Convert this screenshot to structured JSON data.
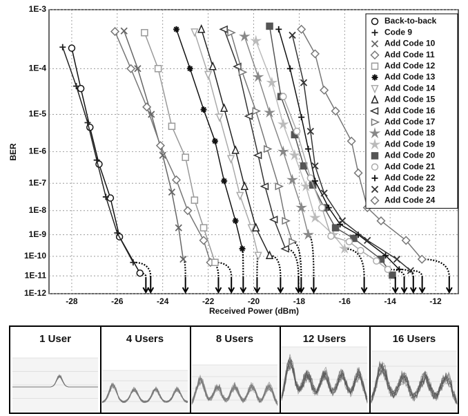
{
  "chart_data": {
    "type": "line",
    "x_label": "Received Power (dBm)",
    "y_label": "BER",
    "xlim": [
      -29,
      -11
    ],
    "xticks": [
      -28,
      -26,
      -24,
      -22,
      -20,
      -18,
      -16,
      -14,
      -12
    ],
    "ylim": [
      0.001,
      1e-12
    ],
    "yscale": "log-log",
    "yticks": [
      {
        "value": 0.001,
        "label": "1E-3"
      },
      {
        "value": 0.0001,
        "label": "1E-4"
      },
      {
        "value": 1e-05,
        "label": "1E-5"
      },
      {
        "value": 1e-06,
        "label": "1E-6"
      },
      {
        "value": 1e-07,
        "label": "1E-7"
      },
      {
        "value": 1e-08,
        "label": "1E-8"
      },
      {
        "value": 1e-09,
        "label": "1E-9"
      },
      {
        "value": 1e-10,
        "label": "1E-10"
      },
      {
        "value": 1e-11,
        "label": "1E-11"
      },
      {
        "value": 1e-12,
        "label": "1E-12"
      }
    ],
    "grid": true,
    "legend": "top-right",
    "series": [
      {
        "name": "Back-to-back",
        "marker": "circle",
        "color": "#111111",
        "x": [
          -28,
          -27.6,
          -27.2,
          -26.8,
          -26.3,
          -25.9,
          -25.0
        ],
        "values": [
          0.00024,
          3.9e-05,
          4.7e-06,
          4.2e-07,
          3e-08,
          8.1e-10,
          1.4e-11
        ],
        "arrow": -24.74
      },
      {
        "name": "Code 9",
        "marker": "plus",
        "color": "#222222",
        "x": [
          -28.4,
          -27.8,
          -27.3,
          -26.9,
          -26.5,
          -26.0,
          -25.3
        ],
        "values": [
          0.00025,
          4.4e-05,
          6.2e-06,
          5.6e-07,
          3.3e-08,
          1.2e-09,
          5e-11
        ],
        "arrow": -24.53
      },
      {
        "name": "Add Code 10",
        "marker": "x",
        "color": "#666666",
        "x": [
          -25.7,
          -25.1,
          -24.5,
          -24.0,
          -23.6,
          -23.3,
          -23.1
        ],
        "values": [
          0.00047,
          0.0001,
          1e-05,
          7.8e-07,
          4.9e-08,
          2e-09,
          7.2e-11
        ],
        "arrow": -23.0
      },
      {
        "name": "Add Code 11",
        "marker": "diamond",
        "color": "#777777",
        "x": [
          -26.1,
          -25.4,
          -24.7,
          -24.1,
          -23.4,
          -22.9,
          -22.2,
          -21.9
        ],
        "values": [
          0.00046,
          0.0001,
          1.5e-05,
          1.5e-06,
          1.3e-07,
          1e-08,
          5.6e-10,
          5e-11
        ],
        "arrow": -21.55
      },
      {
        "name": "Add Code 12",
        "marker": "square",
        "color": "#999999",
        "x": [
          -24.8,
          -24.2,
          -23.6,
          -23.0,
          -22.6,
          -22.2,
          -21.7
        ],
        "values": [
          0.00044,
          0.0001,
          5e-06,
          6.8e-07,
          2.5e-08,
          2e-09,
          5e-11
        ],
        "arrow": -20.98
      },
      {
        "name": "Add Code 13",
        "marker": "asterisk",
        "color": "#111111",
        "x": [
          -23.4,
          -22.8,
          -22.2,
          -21.7,
          -21.3,
          -20.8,
          -20.5
        ],
        "values": [
          0.0005,
          0.0001,
          1.3e-05,
          2e-06,
          1.2e-07,
          3.9e-09,
          2.3e-10
        ],
        "arrow": -20.46
      },
      {
        "name": "Add Code 14",
        "marker": "triangle-down",
        "color": "#aaaaaa",
        "x": [
          -22.6,
          -22.0,
          -21.5,
          -21.0,
          -20.6,
          -20.1,
          -19.8
        ],
        "values": [
          0.00045,
          7.6e-05,
          8.5e-06,
          6.2e-07,
          3.7e-08,
          2e-09,
          1.1e-10
        ],
        "arrow": -19.85
      },
      {
        "name": "Add Code 15",
        "marker": "triangle-up",
        "color": "#222222",
        "x": [
          -22.3,
          -21.8,
          -21.3,
          -20.8,
          -20.4,
          -19.9,
          -19.3
        ],
        "values": [
          0.0005,
          0.00011,
          1.4e-05,
          1.1e-06,
          7.8e-08,
          2e-09,
          1.1e-10
        ],
        "arrow": -18.82
      },
      {
        "name": "Add Code 16",
        "marker": "triangle-left",
        "color": "#333333",
        "x": [
          -21.3,
          -20.7,
          -20.2,
          -19.8,
          -19.5,
          -19.1,
          -18.6
        ],
        "values": [
          0.0005,
          0.00011,
          9e-06,
          7.8e-07,
          7.8e-08,
          4.4e-09,
          2.3e-10
        ],
        "arrow": -18.03
      },
      {
        "name": "Add Code 17",
        "marker": "triangle-right",
        "color": "#777777",
        "x": [
          -21.0,
          -20.5,
          -19.9,
          -19.4,
          -18.9,
          -18.6,
          -18.3
        ],
        "values": [
          0.00044,
          8.5e-05,
          1.2e-05,
          1.2e-06,
          7.8e-08,
          3.9e-09,
          4.9e-10
        ],
        "arrow": -17.91
      },
      {
        "name": "Add Code 18",
        "marker": "star",
        "color": "#888888",
        "x": [
          -20.4,
          -19.8,
          -19.3,
          -18.7,
          -18.3,
          -17.9,
          -17.6
        ],
        "values": [
          0.00038,
          6.8e-05,
          1.1e-05,
          1e-06,
          1.3e-07,
          1.3e-08,
          1e-09
        ],
        "arrow": -17.36
      },
      {
        "name": "Add Code 19",
        "marker": "star",
        "color": "#bbbbbb",
        "x": [
          -19.9,
          -19.2,
          -18.7,
          -18.2,
          -17.7,
          -17.3,
          -16.5,
          -16.0
        ],
        "values": [
          0.00032,
          5.2e-05,
          5.6e-06,
          7.8e-07,
          7.8e-08,
          5.2e-09,
          1e-09,
          2.3e-10
        ],
        "arrow": -15.14
      },
      {
        "name": "Add Code 20",
        "marker": "square-filled",
        "color": "#555555",
        "x": [
          -19.3,
          -18.8,
          -18.2,
          -17.8,
          -17.4,
          -16.9,
          -16.4,
          -15.6,
          -14.4,
          -13.9
        ],
        "values": [
          0.00056,
          2.6e-05,
          3e-06,
          3.7e-07,
          8.7e-08,
          1.3e-08,
          2e-09,
          6.9e-10,
          7.2e-11,
          1.1e-11
        ],
        "arrow": -13.77
      },
      {
        "name": "Add Code 21",
        "marker": "circle",
        "color": "#aaaaaa",
        "x": [
          -18.7,
          -18.1,
          -17.5,
          -17.0,
          -16.6,
          -15.8,
          -15.3,
          -14.6,
          -14.1
        ],
        "values": [
          2.6e-05,
          3.7e-06,
          1.5e-07,
          1.3e-08,
          8.7e-10,
          4.9e-10,
          1.9e-10,
          5.9e-11,
          2.2e-11
        ],
        "arrow": -13.38
      },
      {
        "name": "Add Code 22",
        "marker": "plus",
        "color": "#111111",
        "x": [
          -18.9,
          -18.4,
          -17.9,
          -17.6,
          -17.3,
          -16.7,
          -16.2,
          -15.4,
          -14.2,
          -13.6
        ],
        "values": [
          0.0005,
          0.0001,
          8.5e-06,
          1.2e-06,
          1.2e-07,
          1.3e-08,
          2.8e-09,
          1e-09,
          1.1e-10,
          2.2e-11
        ],
        "arrow": -12.98
      },
      {
        "name": "Add Code 23",
        "marker": "x",
        "color": "#333333",
        "x": [
          -18.3,
          -17.8,
          -17.5,
          -17.3,
          -16.9,
          -16.1,
          -15.0,
          -13.7,
          -13.1
        ],
        "values": [
          0.0004,
          5.2e-05,
          3.7e-06,
          3.7e-07,
          4.5e-08,
          3.9e-09,
          5.6e-10,
          7.2e-11,
          1.9e-11
        ],
        "arrow": -12.59
      },
      {
        "name": "Add Code 24",
        "marker": "diamond",
        "color": "#777777",
        "x": [
          -17.9,
          -17.3,
          -16.9,
          -16.4,
          -15.7,
          -15.4,
          -15.0,
          -14.4,
          -13.3,
          -12.6
        ],
        "values": [
          0.0005,
          0.00019,
          3.6e-05,
          1.2e-05,
          2e-06,
          2.2e-07,
          1.3e-08,
          3.9e-09,
          5.6e-10,
          7.2e-11
        ],
        "arrow": -11.4
      }
    ]
  },
  "eye_diagrams": [
    "1 User",
    "4 Users",
    "8 Users",
    "12 Users",
    "16 Users"
  ]
}
